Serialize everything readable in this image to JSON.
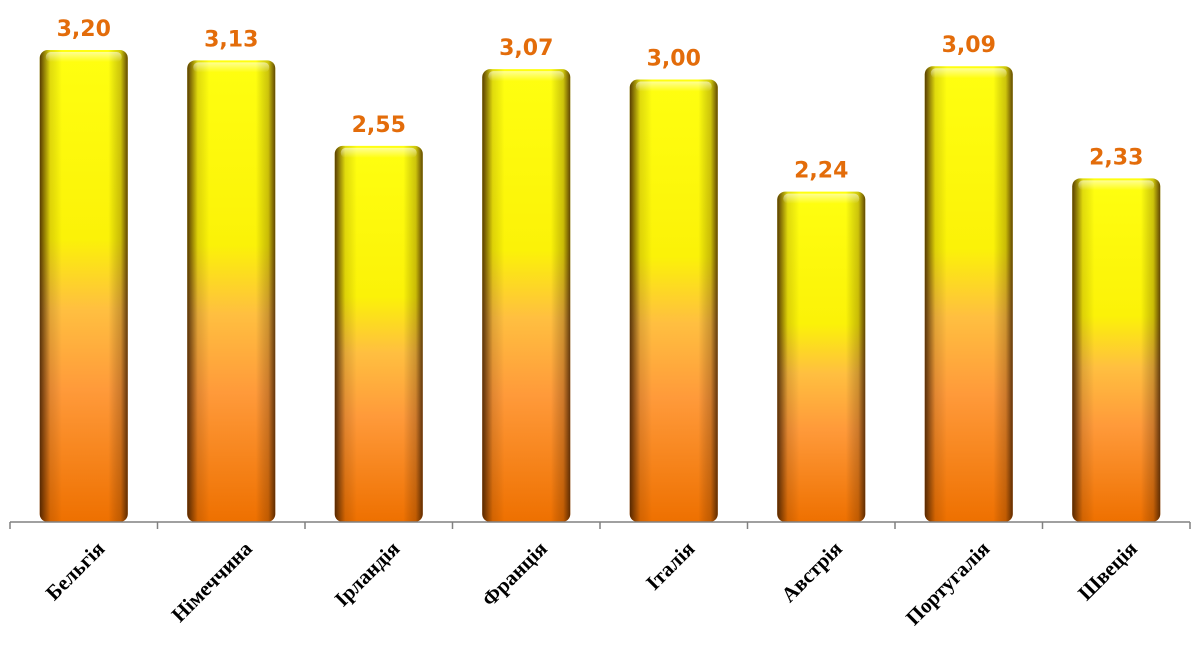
{
  "chart_data": {
    "type": "bar",
    "categories": [
      "Бельгія",
      "Німеччина",
      "Ірландія",
      "Франція",
      "Італія",
      "Австрія",
      "Португалія",
      "Швеція"
    ],
    "values": [
      3.2,
      3.13,
      2.55,
      3.07,
      3.0,
      2.24,
      3.09,
      2.33
    ],
    "value_labels": [
      "3,20",
      "3,13",
      "2,55",
      "3,07",
      "3,00",
      "2,24",
      "3,09",
      "2,33"
    ],
    "ylim": [
      0,
      3.3
    ],
    "grid": false,
    "legend": "none",
    "colors": {
      "bar_top": "#ffff00",
      "bar_bottom": "#f07800",
      "bar_edge": "#7a3a00",
      "value_label": "#e36c0a",
      "axis": "#808080"
    }
  }
}
